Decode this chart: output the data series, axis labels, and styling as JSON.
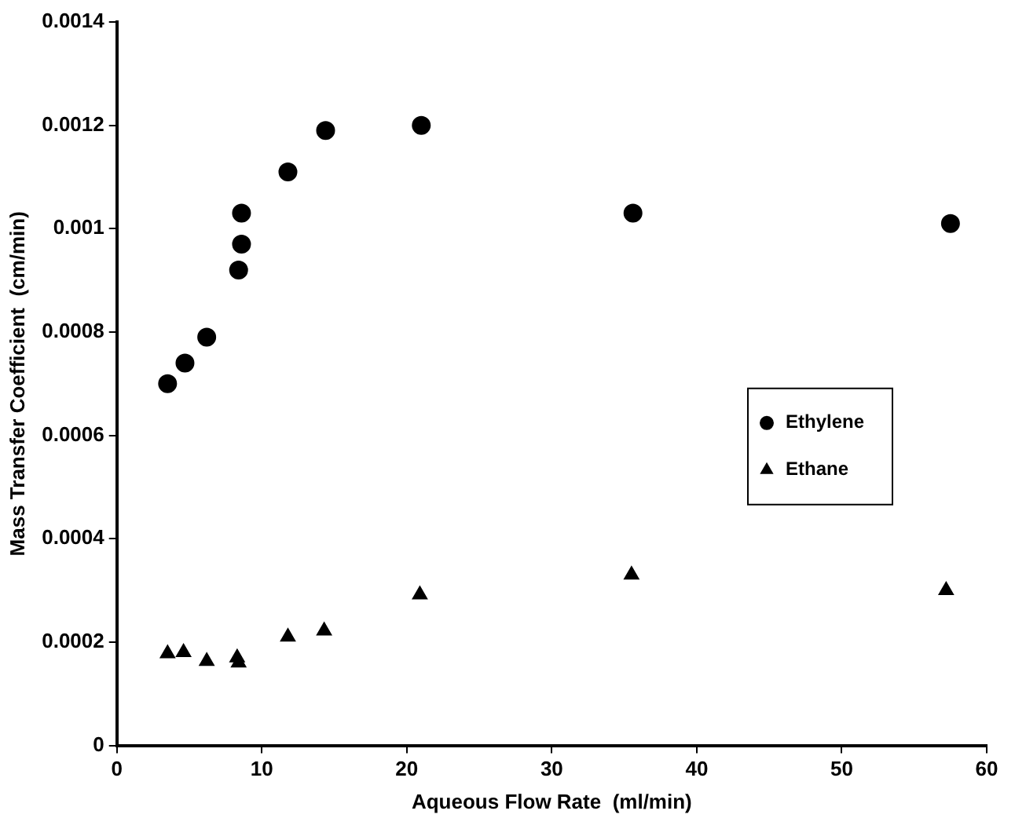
{
  "chart_data": {
    "type": "scatter",
    "xlabel": "Aqueous Flow Rate  (ml/min)",
    "ylabel": "Mass Transfer Coefficient  (cm/min)",
    "xlim": [
      0,
      60
    ],
    "xticks": [
      0,
      10,
      20,
      30,
      40,
      50,
      60
    ],
    "ylim": [
      0,
      0.0014
    ],
    "yticks": [
      0,
      0.0002,
      0.0004,
      0.0006,
      0.0008,
      0.001,
      0.0012,
      0.0014
    ],
    "grid": false,
    "legend": "right",
    "series": [
      {
        "name": "Ethylene",
        "color": "#000000",
        "marker": "circle",
        "x": [
          3.5,
          4.7,
          6.2,
          8.4,
          8.6,
          8.6,
          11.8,
          14.4,
          21.0,
          35.6,
          57.5
        ],
        "values": [
          0.0007,
          0.00074,
          0.00079,
          0.00092,
          0.00097,
          0.00103,
          0.00111,
          0.00119,
          0.0012,
          0.00103,
          0.00101
        ]
      },
      {
        "name": "Ethane",
        "color": "#000000",
        "marker": "triangle",
        "x": [
          3.5,
          4.6,
          6.2,
          8.3,
          8.4,
          11.8,
          14.3,
          20.9,
          35.5,
          57.2
        ],
        "values": [
          0.000178,
          0.00018,
          0.000163,
          0.00017,
          0.00016,
          0.00021,
          0.000222,
          0.000292,
          0.00033,
          0.0003
        ]
      }
    ]
  }
}
